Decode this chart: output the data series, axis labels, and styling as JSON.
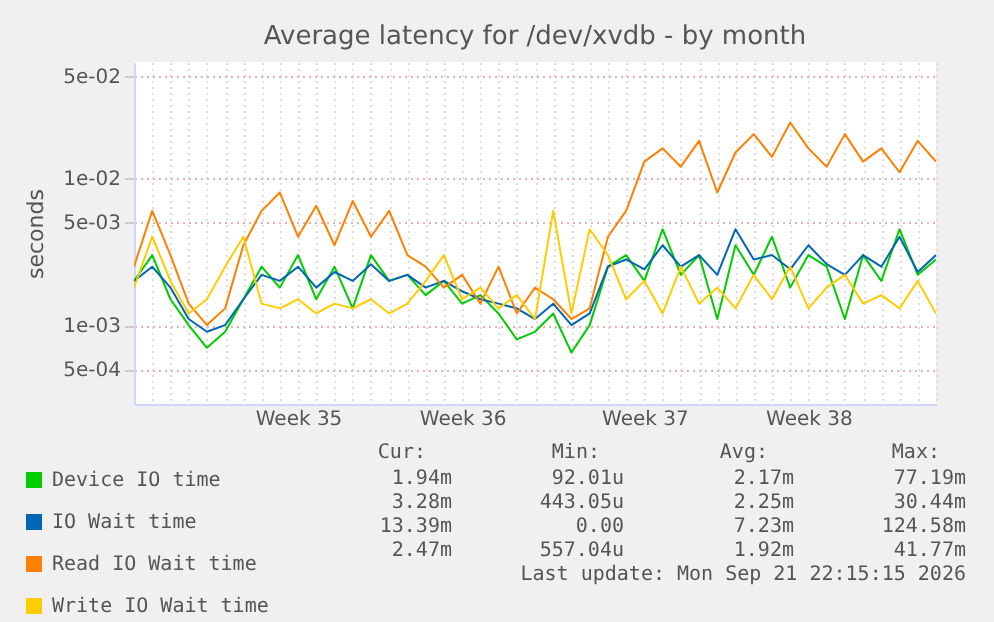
{
  "chart_data": {
    "type": "line",
    "title": "Average latency for /dev/xvdb - by month",
    "ylabel": "seconds",
    "log": "y",
    "grid": true,
    "legend": "bottom",
    "line_style": "solid",
    "marker": "none",
    "categories": [
      null,
      null,
      null,
      null,
      null,
      null,
      null,
      null,
      null,
      "Week 35",
      null,
      null,
      null,
      null,
      null,
      null,
      null,
      null,
      "Week 36",
      null,
      null,
      null,
      null,
      null,
      null,
      null,
      null,
      null,
      "Week 37",
      null,
      null,
      null,
      null,
      null,
      null,
      null,
      null,
      "Week 38",
      null,
      null,
      null,
      null,
      null,
      null,
      null
    ],
    "ylim": [
      0.00029,
      0.062
    ],
    "yticks": [
      {
        "value": 0.0005,
        "label": "5e-04"
      },
      {
        "value": 0.001,
        "label": "1e-03"
      },
      {
        "value": 0.005,
        "label": "5e-03"
      },
      {
        "value": 0.01,
        "label": "1e-02"
      },
      {
        "value": 0.05,
        "label": "5e-02"
      }
    ],
    "series": [
      {
        "name": "Device IO time",
        "color": "#00cc00",
        "values": [
          0.002,
          0.003,
          0.0015,
          0.001,
          0.0007,
          0.0009,
          0.0015,
          0.0025,
          0.0018,
          0.003,
          0.0015,
          0.0025,
          0.0013,
          0.003,
          0.002,
          0.0022,
          0.0016,
          0.002,
          0.0014,
          0.0016,
          0.0012,
          0.0008,
          0.0009,
          0.0012,
          0.00065,
          0.001,
          0.0025,
          0.003,
          0.002,
          0.0045,
          0.0022,
          0.003,
          0.0011,
          0.0035,
          0.0022,
          0.004,
          0.0018,
          0.003,
          0.0025,
          0.0011,
          0.003,
          0.002,
          0.0045,
          0.0022,
          0.0028
        ]
      },
      {
        "name": "IO Wait time",
        "color": "#0066b3",
        "values": [
          0.002,
          0.0025,
          0.0018,
          0.0011,
          0.0009,
          0.001,
          0.0015,
          0.0022,
          0.002,
          0.0025,
          0.0018,
          0.0023,
          0.002,
          0.0026,
          0.002,
          0.0022,
          0.0018,
          0.002,
          0.0017,
          0.0015,
          0.0014,
          0.0013,
          0.0011,
          0.0014,
          0.001,
          0.0012,
          0.0025,
          0.0028,
          0.0024,
          0.0035,
          0.0025,
          0.003,
          0.0022,
          0.0045,
          0.0028,
          0.003,
          0.0024,
          0.0035,
          0.0026,
          0.0022,
          0.003,
          0.0025,
          0.004,
          0.0023,
          0.003
        ]
      },
      {
        "name": "Read IO Wait time",
        "color": "#ff8000",
        "values": [
          0.0025,
          0.006,
          0.003,
          0.0014,
          0.001,
          0.0013,
          0.0035,
          0.006,
          0.008,
          0.004,
          0.0065,
          0.0035,
          0.007,
          0.004,
          0.006,
          0.003,
          0.0025,
          0.0018,
          0.0022,
          0.0014,
          0.0025,
          0.0012,
          0.0018,
          0.0015,
          0.0011,
          0.0013,
          0.004,
          0.006,
          0.013,
          0.016,
          0.012,
          0.018,
          0.008,
          0.015,
          0.02,
          0.014,
          0.024,
          0.016,
          0.012,
          0.02,
          0.013,
          0.016,
          0.011,
          0.018,
          0.013
        ]
      },
      {
        "name": "Write IO Wait time",
        "color": "#ffcc00",
        "values": [
          0.0018,
          0.004,
          0.002,
          0.0012,
          0.0015,
          0.0025,
          0.004,
          0.0014,
          0.0013,
          0.0015,
          0.0012,
          0.0014,
          0.0013,
          0.0015,
          0.0012,
          0.0014,
          0.002,
          0.003,
          0.0015,
          0.0018,
          0.0013,
          0.0016,
          0.0011,
          0.006,
          0.0012,
          0.0045,
          0.003,
          0.0015,
          0.002,
          0.0012,
          0.0025,
          0.0014,
          0.0018,
          0.0013,
          0.0022,
          0.0015,
          0.0025,
          0.0013,
          0.0018,
          0.0022,
          0.0014,
          0.0016,
          0.0013,
          0.002,
          0.0012
        ]
      }
    ],
    "annotations": [
      "Cur:",
      "Min:",
      "Avg:",
      "Max:",
      "1.94m",
      "92.01u",
      "2.17m",
      "77.19m",
      "3.28m",
      "443.05u",
      "2.25m",
      "30.44m",
      "13.39m",
      "0.00",
      "7.23m",
      "124.58m",
      "2.47m",
      "557.04u",
      "1.92m",
      "41.77m",
      "Last update: Mon Sep 21 22:15:15 2026"
    ]
  }
}
